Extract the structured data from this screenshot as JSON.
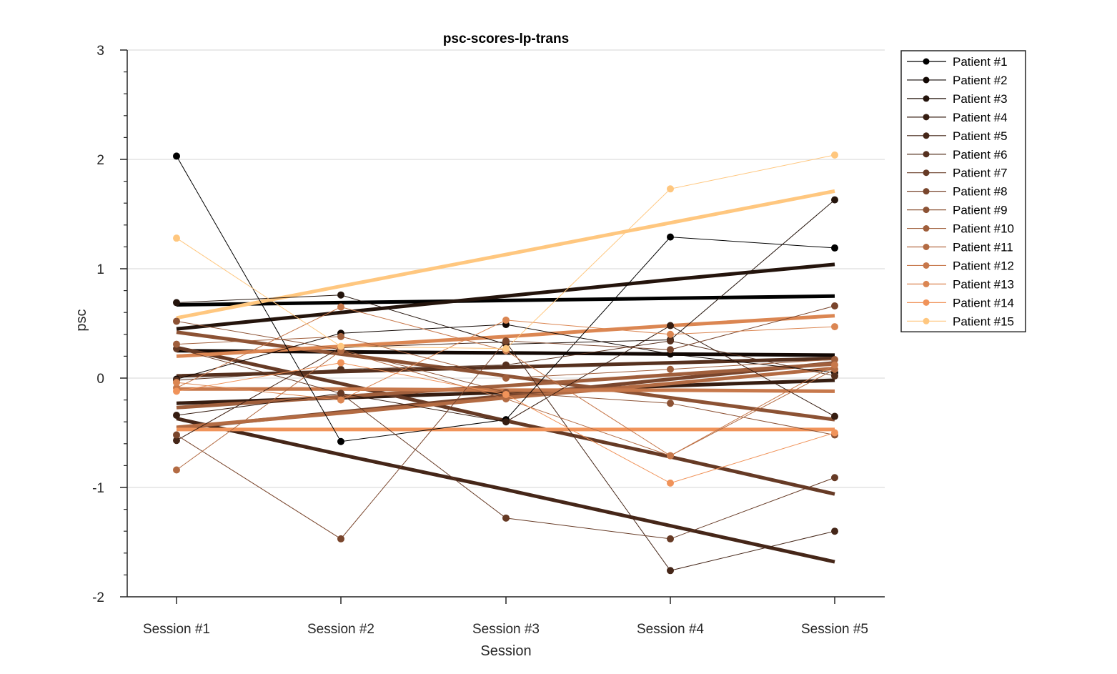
{
  "chart_data": {
    "type": "line",
    "title": "psc-scores-lp-trans",
    "xlabel": "Session",
    "ylabel": "psc",
    "categories": [
      "Session #1",
      "Session #2",
      "Session #3",
      "Session #4",
      "Session #5"
    ],
    "ylim": [
      -2,
      3
    ],
    "yticks": [
      -2,
      -1,
      0,
      1,
      2,
      3
    ],
    "ytick_labels": [
      "-2",
      "-1",
      "0",
      "1",
      "2",
      "3"
    ],
    "grid": true,
    "legend_position": "top-right outside",
    "series": [
      {
        "name": "Patient #1",
        "color": "#000000",
        "values": [
          2.03,
          -0.58,
          -0.38,
          1.29,
          1.19
        ],
        "trend": [
          0.67,
          0.69,
          0.71,
          0.73,
          0.75
        ]
      },
      {
        "name": "Patient #2",
        "color": "#120804",
        "values": [
          -0.01,
          0.41,
          0.49,
          0.22,
          0.05
        ],
        "trend": [
          0.25,
          0.24,
          0.23,
          0.22,
          0.21
        ]
      },
      {
        "name": "Patient #3",
        "color": "#24140c",
        "values": [
          0.69,
          0.76,
          0.31,
          0.35,
          1.63
        ],
        "trend": [
          0.45,
          0.6,
          0.75,
          0.9,
          1.04
        ]
      },
      {
        "name": "Patient #4",
        "color": "#361d11",
        "values": [
          -0.34,
          -0.14,
          -0.4,
          0.48,
          -0.35
        ],
        "trend": [
          -0.23,
          -0.18,
          -0.13,
          -0.07,
          -0.02
        ]
      },
      {
        "name": "Patient #5",
        "color": "#452618",
        "values": [
          -0.57,
          0.28,
          0.33,
          -1.76,
          -1.4
        ],
        "trend": [
          -0.37,
          -0.7,
          -1.02,
          -1.35,
          -1.68
        ]
      },
      {
        "name": "Patient #6",
        "color": "#55301e",
        "values": [
          -0.02,
          0.08,
          0.12,
          0.34,
          0.02
        ],
        "trend": [
          0.02,
          0.06,
          0.1,
          0.14,
          0.18
        ]
      },
      {
        "name": "Patient #7",
        "color": "#663a25",
        "values": [
          0.27,
          -0.14,
          -1.28,
          -1.47,
          -0.91
        ],
        "trend": [
          0.28,
          -0.05,
          -0.39,
          -0.72,
          -1.06
        ]
      },
      {
        "name": "Patient #8",
        "color": "#79452c",
        "values": [
          -0.52,
          -1.47,
          0.34,
          0.26,
          0.66
        ],
        "trend": [
          -0.46,
          -0.31,
          -0.16,
          -0.01,
          0.14
        ]
      },
      {
        "name": "Patient #9",
        "color": "#8c5234",
        "values": [
          0.52,
          0.26,
          -0.13,
          -0.23,
          -0.52
        ],
        "trend": [
          0.42,
          0.22,
          0.02,
          -0.18,
          -0.38
        ]
      },
      {
        "name": "Patient #10",
        "color": "#a05f3c",
        "values": [
          0.31,
          0.38,
          0.0,
          0.08,
          0.17
        ],
        "trend": [
          -0.27,
          -0.17,
          -0.07,
          0.03,
          0.13
        ]
      },
      {
        "name": "Patient #11",
        "color": "#b36b43",
        "values": [
          -0.84,
          0.25,
          -0.19,
          -0.71,
          0.08
        ],
        "trend": [
          -0.45,
          -0.32,
          -0.18,
          -0.05,
          0.09
        ]
      },
      {
        "name": "Patient #12",
        "color": "#c7784b",
        "values": [
          -0.09,
          0.65,
          0.25,
          -0.71,
          0.12
        ],
        "trend": [
          -0.1,
          -0.1,
          -0.11,
          -0.11,
          -0.12
        ]
      },
      {
        "name": "Patient #13",
        "color": "#db8652",
        "values": [
          -0.04,
          -0.2,
          0.53,
          0.4,
          0.47
        ],
        "trend": [
          0.2,
          0.29,
          0.38,
          0.48,
          0.57
        ]
      },
      {
        "name": "Patient #14",
        "color": "#f0935a",
        "values": [
          -0.12,
          0.14,
          -0.15,
          -0.96,
          -0.5
        ],
        "trend": [
          -0.47,
          -0.47,
          -0.47,
          -0.47,
          -0.47
        ]
      },
      {
        "name": "Patient #15",
        "color": "#ffc77f",
        "values": [
          1.28,
          0.29,
          0.27,
          1.73,
          2.04
        ],
        "trend": [
          0.55,
          0.84,
          1.13,
          1.42,
          1.71
        ]
      }
    ]
  }
}
